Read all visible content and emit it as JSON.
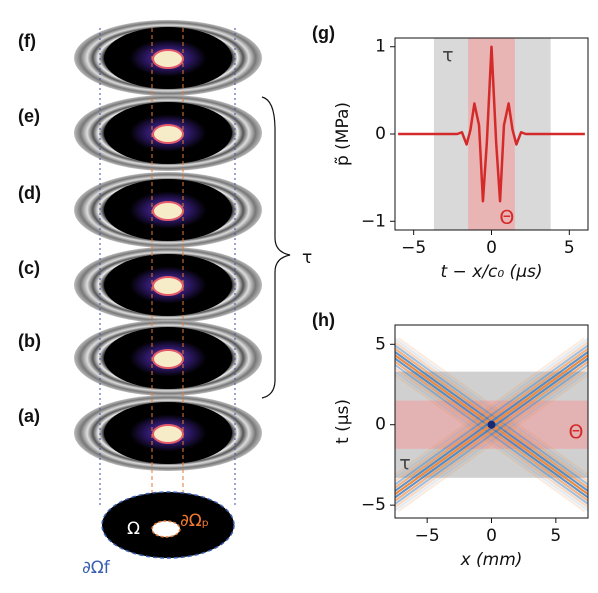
{
  "diagram": {
    "panels": [
      "(a)",
      "(b)",
      "(c)",
      "(d)",
      "(e)",
      "(f)"
    ],
    "brace_label": "τ",
    "domain_label": "Ω",
    "inner_boundary_label": "∂Ωₚ",
    "outer_boundary_label": "∂Ωf"
  },
  "chart_data": [
    {
      "type": "line",
      "panel": "(g)",
      "xlabel": "t − x/c₀ (μs)",
      "ylabel": "p̃ (MPa)",
      "x": [
        -6,
        -2.2,
        -1.9,
        -1.6,
        -1.35,
        -1.1,
        -0.8,
        -0.55,
        -0.3,
        0,
        0.3,
        0.55,
        0.8,
        1.1,
        1.35,
        1.6,
        1.9,
        2.2,
        6
      ],
      "values": [
        0,
        0,
        0.02,
        -0.12,
        0.05,
        0.35,
        0.1,
        -0.77,
        -0.1,
        1,
        -0.1,
        -0.77,
        0.1,
        0.35,
        0.05,
        -0.12,
        0.02,
        0,
        0
      ],
      "color": "#d42a2a",
      "bands": [
        {
          "label": "τ",
          "range": [
            -3.7,
            3.8
          ],
          "color": "#d9d9d9"
        },
        {
          "label": "Θ",
          "range": [
            -1.5,
            1.5
          ],
          "color": "#e8b4b4"
        }
      ],
      "xlim": [
        -6.2,
        6.2
      ],
      "ylim": [
        -1.1,
        1.1
      ],
      "xticks": [
        {
          "value": -5,
          "label": "−5"
        },
        0,
        5
      ],
      "yticks": [
        {
          "value": -1,
          "label": "−1"
        },
        0,
        1
      ]
    },
    {
      "type": "heatmap",
      "panel": "(h)",
      "xlabel": "x (mm)",
      "ylabel": "t (μs)",
      "bands": [
        {
          "label": "τ",
          "range": [
            -3.3,
            3.3
          ],
          "color": "#d0d0d0"
        },
        {
          "label": "Θ",
          "range": [
            -1.5,
            1.5
          ],
          "color": "#e3b3b3"
        }
      ],
      "xlim": [
        -7.5,
        7.5
      ],
      "ylim": [
        -5.8,
        6.2
      ],
      "xticks": [
        {
          "value": -5,
          "label": "−5"
        },
        0,
        5
      ],
      "yticks": [
        {
          "value": -5,
          "label": "−5"
        },
        0,
        5
      ]
    }
  ]
}
